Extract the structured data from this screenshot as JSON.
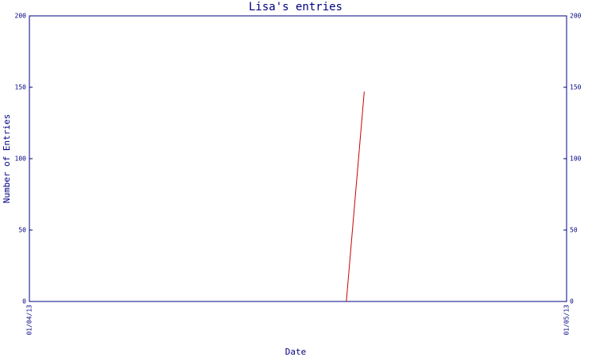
{
  "chart_data": {
    "type": "line",
    "title": "Lisa's entries",
    "xlabel": "Date",
    "ylabel": "Number of Entries",
    "x": [
      17.7,
      18.7
    ],
    "series": [
      {
        "color": "#cc0000",
        "values": [
          0,
          147
        ]
      }
    ],
    "xlim": [
      0,
      30
    ],
    "xticks": [
      {
        "value": 0,
        "label": "01/04/13"
      },
      {
        "value": 30,
        "label": "01/05/13"
      }
    ],
    "ylim": [
      0,
      200
    ],
    "yticks": [
      0,
      50,
      100,
      150,
      200
    ],
    "axis_color": "#000080"
  }
}
